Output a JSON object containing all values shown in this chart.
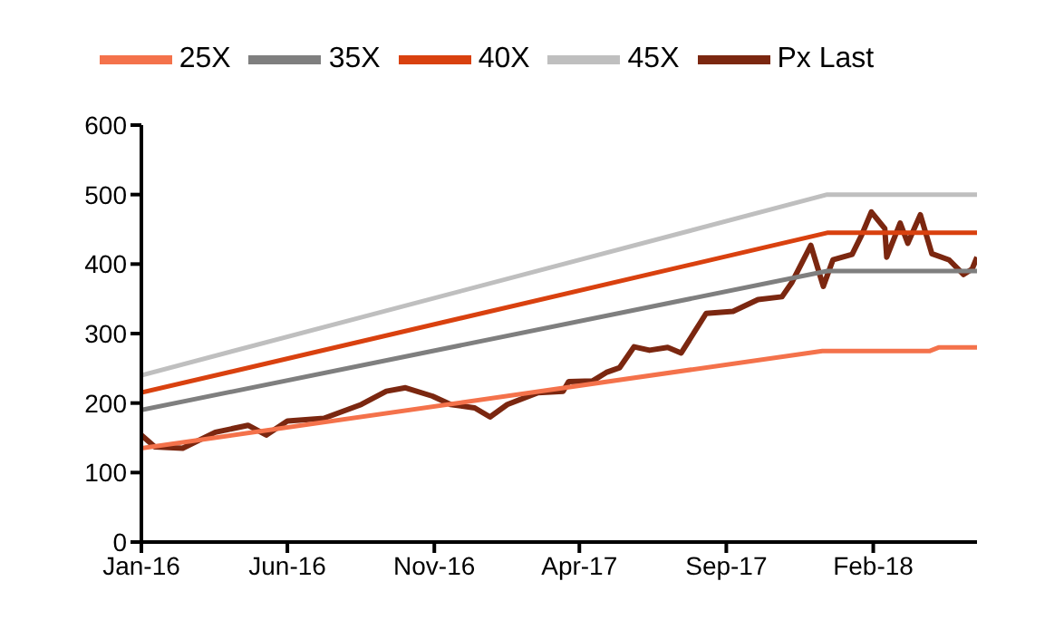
{
  "chart_data": {
    "type": "line",
    "legend": "top",
    "grid": false,
    "marker": "none",
    "line_style": "solid",
    "xlim": [
      "2016-01-01",
      "2018-05-20"
    ],
    "xticks": [
      {
        "value": "2016-01-01",
        "label": "Jan-16"
      },
      {
        "value": "2016-06-01",
        "label": "Jun-16"
      },
      {
        "value": "2016-11-01",
        "label": "Nov-16"
      },
      {
        "value": "2017-04-01",
        "label": "Apr-17"
      },
      {
        "value": "2017-09-01",
        "label": "Sep-17"
      },
      {
        "value": "2018-02-01",
        "label": "Feb-18"
      }
    ],
    "ylim": [
      0,
      600
    ],
    "yticks": [
      0,
      100,
      200,
      300,
      400,
      500,
      600
    ],
    "series": [
      {
        "name": "Px Last",
        "color": "#7b2710",
        "x": [
          "2016-01-01",
          "2016-01-15",
          "2016-02-13",
          "2016-03-18",
          "2016-04-21",
          "2016-05-10",
          "2016-06-01",
          "2016-07-09",
          "2016-08-17",
          "2016-09-12",
          "2016-10-02",
          "2016-10-30",
          "2016-11-18",
          "2016-12-13",
          "2016-12-29",
          "2017-01-16",
          "2017-02-17",
          "2017-03-15",
          "2017-03-21",
          "2017-04-15",
          "2017-04-29",
          "2017-05-13",
          "2017-05-28",
          "2017-06-13",
          "2017-07-02",
          "2017-07-16",
          "2017-08-11",
          "2017-09-08",
          "2017-10-04",
          "2017-10-29",
          "2017-11-08",
          "2017-11-28",
          "2017-12-11",
          "2017-12-21",
          "2018-01-10",
          "2018-01-20",
          "2018-01-30",
          "2018-02-13",
          "2018-02-15",
          "2018-03-01",
          "2018-03-09",
          "2018-03-22",
          "2018-04-03",
          "2018-04-21",
          "2018-05-06",
          "2018-05-15",
          "2018-05-20"
        ],
        "values": [
          154,
          137,
          135,
          158,
          168,
          154,
          174,
          178,
          198,
          217,
          222,
          210,
          198,
          193,
          180,
          198,
          215,
          217,
          231,
          232,
          244,
          251,
          281,
          276,
          280,
          272,
          329,
          332,
          349,
          353,
          373,
          427,
          368,
          406,
          414,
          442,
          475,
          451,
          410,
          459,
          430,
          471,
          415,
          406,
          385,
          393,
          410
        ]
      },
      {
        "name": "25X",
        "color": "#f4724b",
        "x": [
          "2016-01-01",
          "2017-12-10",
          "2018-04-01",
          "2018-04-10",
          "2018-05-20"
        ],
        "values": [
          135,
          275,
          275,
          280,
          280
        ]
      },
      {
        "name": "35X",
        "color": "#7f7f7f",
        "x": [
          "2016-01-01",
          "2017-12-15",
          "2018-05-20"
        ],
        "values": [
          190,
          390,
          390
        ]
      },
      {
        "name": "40X",
        "color": "#d9410f",
        "x": [
          "2016-01-01",
          "2017-12-15",
          "2018-05-20"
        ],
        "values": [
          215,
          445,
          445
        ]
      },
      {
        "name": "45X",
        "color": "#bfbfbf",
        "x": [
          "2016-01-01",
          "2017-12-15",
          "2018-05-20"
        ],
        "values": [
          240,
          500,
          500
        ]
      }
    ]
  }
}
